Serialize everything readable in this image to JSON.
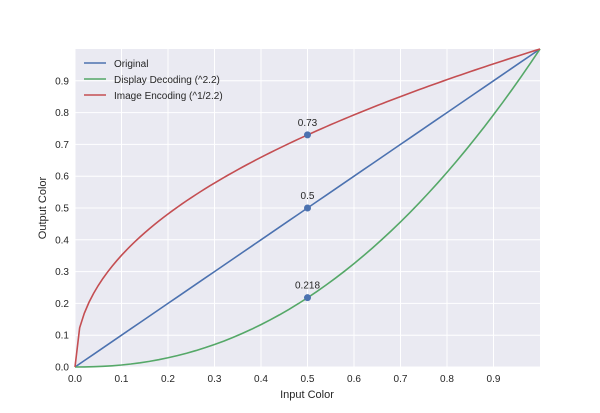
{
  "chart_data": {
    "type": "line",
    "title": "",
    "xlabel": "Input Color",
    "ylabel": "Output Color",
    "xlim": [
      0,
      1
    ],
    "ylim": [
      0,
      1
    ],
    "xticks": [
      "0.0",
      "0.1",
      "0.2",
      "0.3",
      "0.4",
      "0.5",
      "0.6",
      "0.7",
      "0.8",
      "0.9"
    ],
    "yticks": [
      "0.0",
      "0.1",
      "0.2",
      "0.3",
      "0.4",
      "0.5",
      "0.6",
      "0.7",
      "0.8",
      "0.9"
    ],
    "grid": true,
    "legend_position": "upper left",
    "series": [
      {
        "name": "Original",
        "color": "#4c72b0",
        "function": "y = x"
      },
      {
        "name": "Display Decoding (^2.2)",
        "color": "#55a868",
        "function": "y = x^2.2"
      },
      {
        "name": "Image Encoding (^1/2.2)",
        "color": "#c44e52",
        "function": "y = x^(1/2.2)"
      }
    ],
    "markers": [
      {
        "x": 0.5,
        "y": 0.73,
        "label": "0.73"
      },
      {
        "x": 0.5,
        "y": 0.5,
        "label": "0.5"
      },
      {
        "x": 0.5,
        "y": 0.218,
        "label": "0.218"
      }
    ]
  },
  "legend": {
    "items": [
      "Original",
      "Display Decoding (^2.2)",
      "Image Encoding (^1/2.2)"
    ]
  },
  "axes": {
    "xlabel": "Input Color",
    "ylabel": "Output Color"
  },
  "annotations": [
    "0.73",
    "0.5",
    "0.218"
  ]
}
